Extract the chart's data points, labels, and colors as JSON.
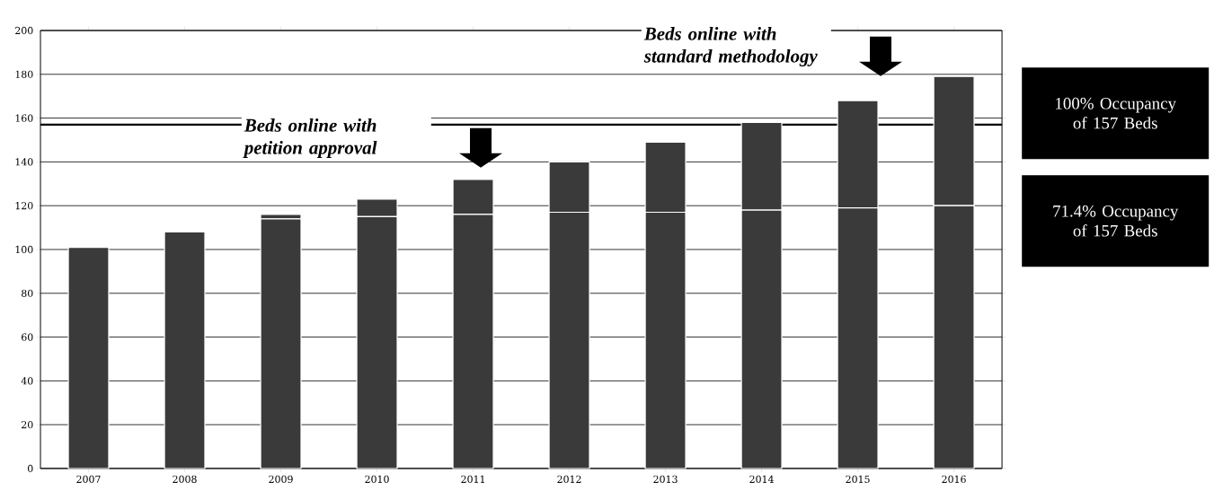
{
  "chart_data": {
    "type": "bar",
    "stacked": true,
    "categories": [
      "2007",
      "2008",
      "2009",
      "2010",
      "2011",
      "2012",
      "2013",
      "2014",
      "2015",
      "2016"
    ],
    "series": [
      {
        "color": "#3a3a3a",
        "values": [
          101,
          108,
          114,
          115,
          116,
          117,
          117,
          118,
          119,
          120
        ]
      },
      {
        "color": "#3a3a3a",
        "values": [
          0,
          0,
          2,
          8,
          16,
          23,
          32,
          40,
          49,
          59
        ]
      }
    ],
    "ylim": [
      0,
      200
    ],
    "yticks": [
      0,
      20,
      40,
      60,
      80,
      100,
      120,
      140,
      160,
      180,
      200
    ],
    "grid": "y",
    "legend": false,
    "ref_lines": [
      {
        "axis": "y",
        "value": 157,
        "color": "#000000"
      }
    ],
    "annotations": [
      "Beds online with petition approval",
      "Beds online with standard methodology",
      "100% Occupancy of 157 Beds",
      "71.4% Occupancy of 157 Beds"
    ]
  }
}
